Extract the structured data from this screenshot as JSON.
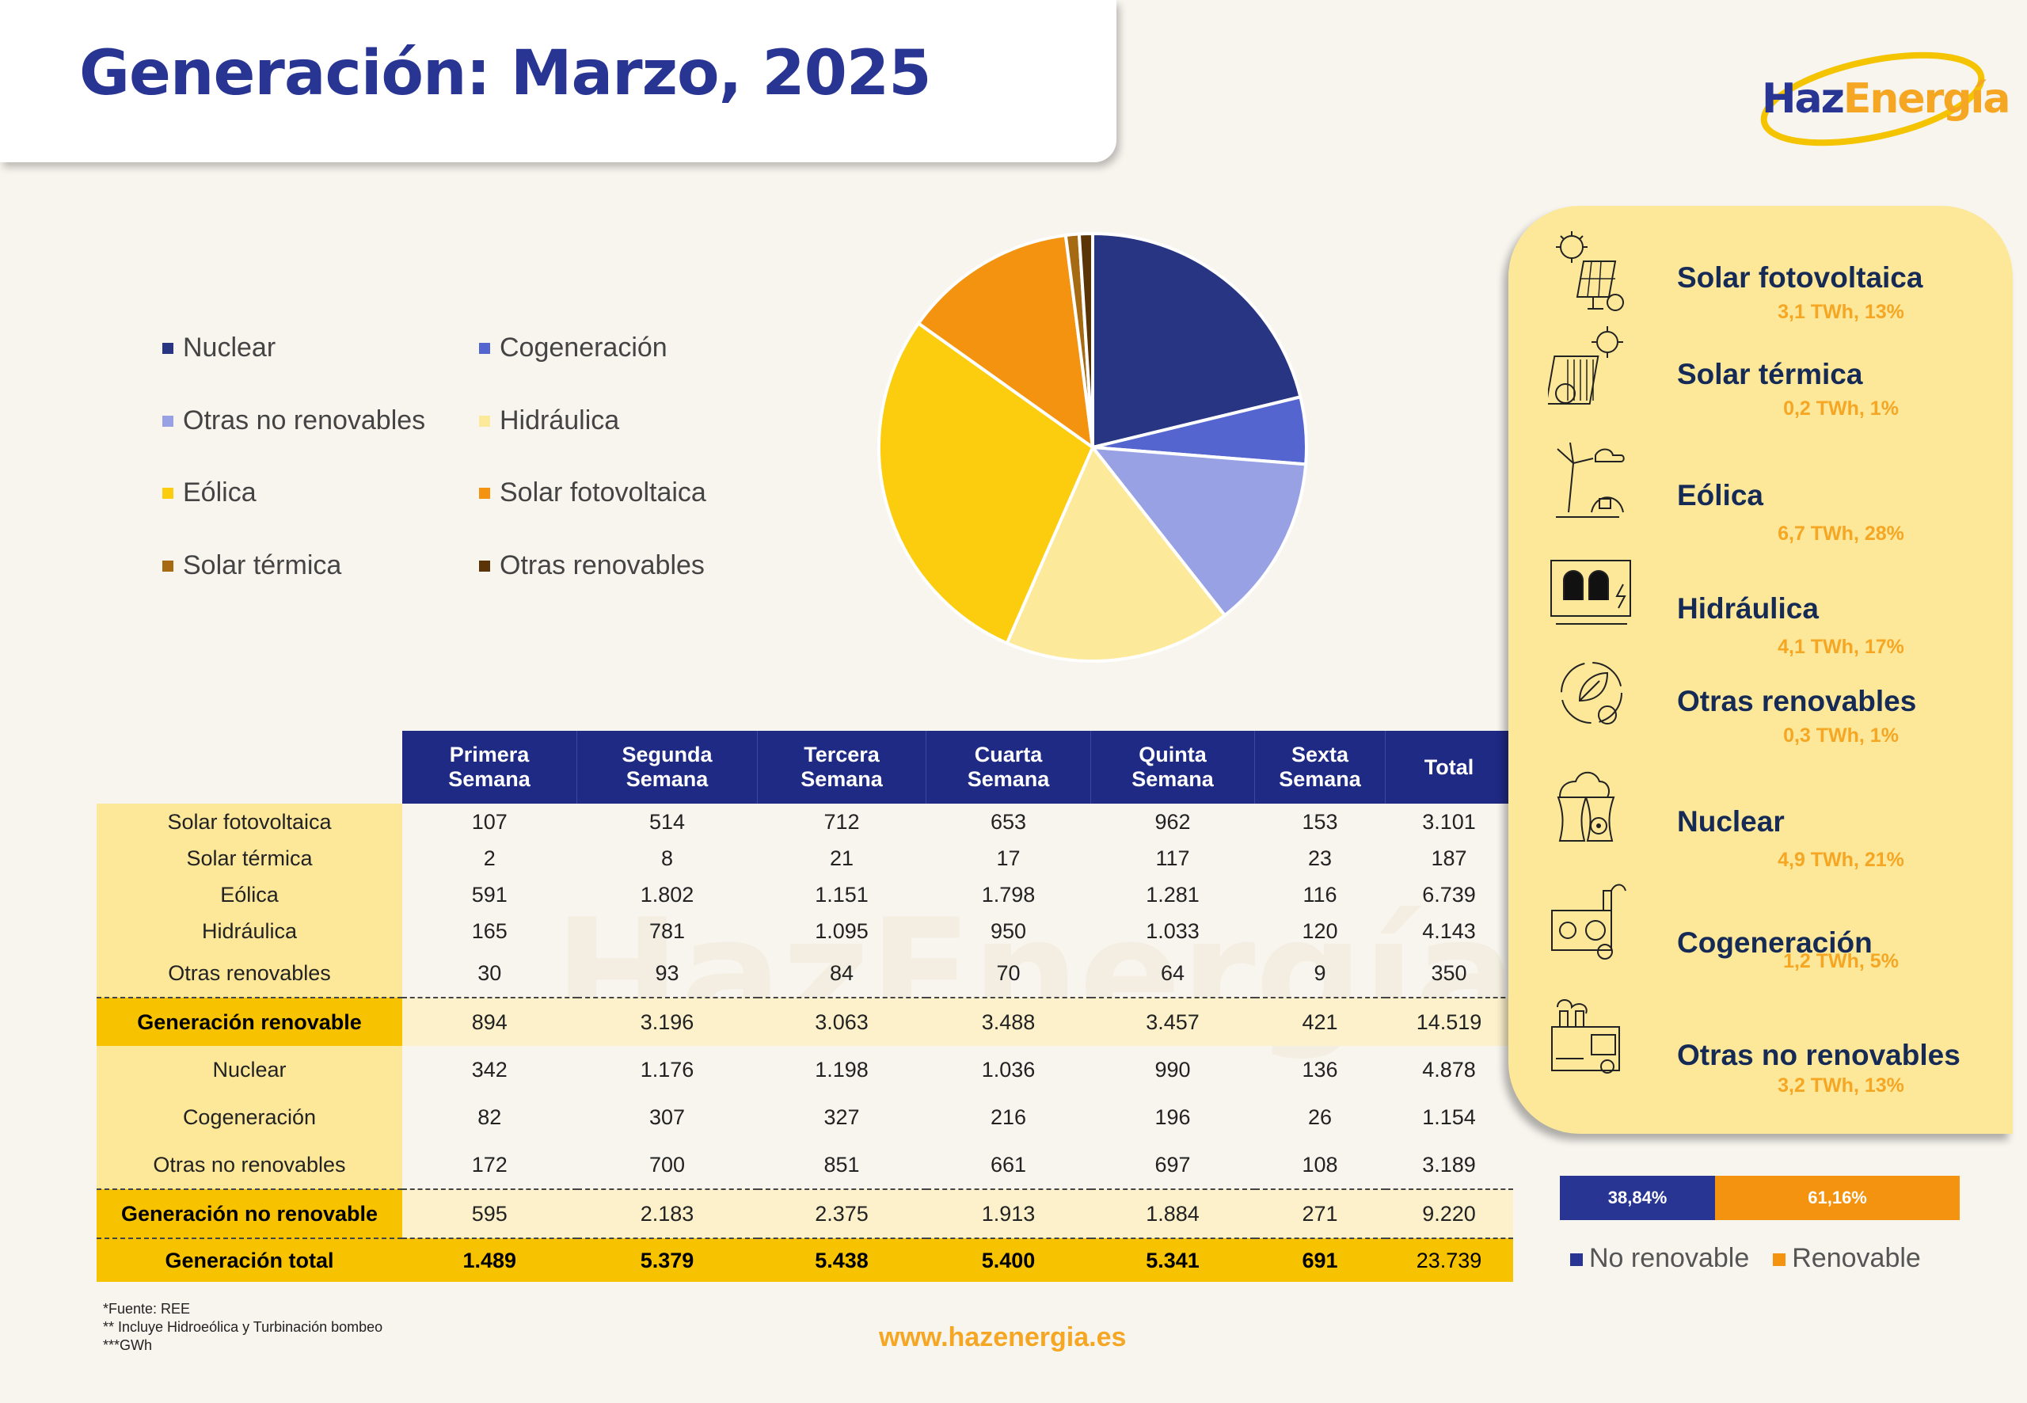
{
  "title": "Generación: Marzo, 2025",
  "brand": {
    "haz": "Haz",
    "energia": "Energía",
    "watermark": "HazEnergía"
  },
  "colors": {
    "Nuclear": "#283583",
    "Cogeneración": "#5565d0",
    "Otras no renovables": "#97a1e3",
    "Hidráulica": "#fde99a",
    "Eólica": "#fbcd0e",
    "Solar fotovoltaica": "#f4930f",
    "Solar térmica": "#a66b12",
    "Otras renovables": "#5a3306"
  },
  "chart_data": {
    "type": "pie",
    "title": "",
    "legend_position": "left",
    "slices": [
      {
        "label": "Nuclear",
        "value": 21
      },
      {
        "label": "Cogeneración",
        "value": 5
      },
      {
        "label": "Otras no renovables",
        "value": 13
      },
      {
        "label": "Hidráulica",
        "value": 17
      },
      {
        "label": "Eólica",
        "value": 28
      },
      {
        "label": "Solar fotovoltaica",
        "value": 13
      },
      {
        "label": "Solar térmica",
        "value": 1
      },
      {
        "label": "Otras renovables",
        "value": 1
      }
    ]
  },
  "legend": [
    "Nuclear",
    "Cogeneración",
    "Otras no renovables",
    "Hidráulica",
    "Eólica",
    "Solar fotovoltaica",
    "Solar térmica",
    "Otras renovables"
  ],
  "table": {
    "headers": [
      [
        "Primera",
        "Semana"
      ],
      [
        "Segunda",
        "Semana"
      ],
      [
        "Tercera",
        "Semana"
      ],
      [
        "Cuarta",
        "Semana"
      ],
      [
        "Quinta",
        "Semana"
      ],
      [
        "Sexta",
        "Semana"
      ],
      [
        "Total",
        ""
      ]
    ],
    "rows": [
      {
        "label": "Solar fotovoltaica",
        "values": [
          "107",
          "514",
          "712",
          "653",
          "962",
          "153",
          "3.101"
        ]
      },
      {
        "label": "Solar térmica",
        "values": [
          "2",
          "8",
          "21",
          "17",
          "117",
          "23",
          "187"
        ]
      },
      {
        "label": "Eólica",
        "values": [
          "591",
          "1.802",
          "1.151",
          "1.798",
          "1.281",
          "116",
          "6.739"
        ]
      },
      {
        "label": "Hidráulica",
        "values": [
          "165",
          "781",
          "1.095",
          "950",
          "1.033",
          "120",
          "4.143"
        ]
      },
      {
        "label": "Otras renovables",
        "values": [
          "30",
          "93",
          "84",
          "70",
          "64",
          "9",
          "350"
        ]
      },
      {
        "label": "Generación  renovable",
        "values": [
          "894",
          "3.196",
          "3.063",
          "3.488",
          "3.457",
          "421",
          "14.519"
        ]
      },
      {
        "label": "Nuclear",
        "values": [
          "342",
          "1.176",
          "1.198",
          "1.036",
          "990",
          "136",
          "4.878"
        ]
      },
      {
        "label": "Cogeneración",
        "values": [
          "82",
          "307",
          "327",
          "216",
          "196",
          "26",
          "1.154"
        ]
      },
      {
        "label": "Otras no renovables",
        "values": [
          "172",
          "700",
          "851",
          "661",
          "697",
          "108",
          "3.189"
        ]
      },
      {
        "label": "Generación no renovable",
        "values": [
          "595",
          "2.183",
          "2.375",
          "1.913",
          "1.884",
          "271",
          "9.220"
        ]
      },
      {
        "label": "Generación total",
        "values": [
          "1.489",
          "5.379",
          "5.438",
          "5.400",
          "5.341",
          "691",
          "23.739"
        ]
      }
    ]
  },
  "notes": [
    "*Fuente: REE",
    "** Incluye Hidroeólica y Turbinación bombeo",
    "***GWh"
  ],
  "url": "www.hazenergia.es",
  "side_panel": [
    {
      "name": "Solar fotovoltaica",
      "value": "3,1 TWh, 13%",
      "icon": "solar-panel-icon"
    },
    {
      "name": "Solar térmica",
      "value": "0,2 TWh, 1%",
      "icon": "solar-thermal-icon"
    },
    {
      "name": "Eólica",
      "value": "6,7 TWh, 28%",
      "icon": "wind-turbine-icon"
    },
    {
      "name": "Hidráulica",
      "value": "4,1 TWh, 17%",
      "icon": "dam-icon"
    },
    {
      "name": "Otras renovables",
      "value": "0,3 TWh, 1%",
      "icon": "recycle-leaf-icon"
    },
    {
      "name": "Nuclear",
      "value": "4,9 TWh, 21%",
      "icon": "nuclear-plant-icon"
    },
    {
      "name": "Cogeneración",
      "value": "1,2 TWh, 5%",
      "icon": "cogeneration-icon"
    },
    {
      "name": "Otras no renovables",
      "value": "3,2 TWh, 13%",
      "icon": "factory-icon"
    }
  ],
  "split": {
    "no_renovable": {
      "label": "38,84%",
      "value": 38.84,
      "color": "#283593"
    },
    "renovable": {
      "label": "61,16%",
      "value": 61.16,
      "color": "#f4930f"
    },
    "legend": [
      "No renovable",
      "Renovable"
    ]
  }
}
